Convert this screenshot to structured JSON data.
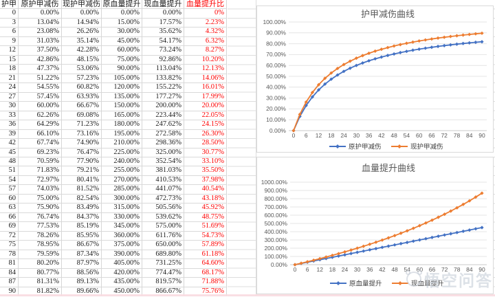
{
  "colors": {
    "accent_blue": "#4472C4",
    "accent_orange": "#ED7D31",
    "red_text": "#FE0000",
    "gridline": "#D9D9D9",
    "axis_text": "#595959"
  },
  "watermark": {
    "text": "悟空问答"
  },
  "table": {
    "headers": [
      "护甲",
      "原护甲减伤",
      "现护甲减伤",
      "原血量提升",
      "现血量提升",
      "血量提升比"
    ],
    "red_column_index": 5,
    "rows": [
      [
        "0",
        "0.00%",
        "0.00%",
        "0.00%",
        "0.00%",
        "0%"
      ],
      [
        "3",
        "13.04%",
        "14.94%",
        "15.00%",
        "17.57%",
        "2.23%"
      ],
      [
        "6",
        "23.08%",
        "26.26%",
        "30.00%",
        "35.62%",
        "4.32%"
      ],
      [
        "9",
        "31.03%",
        "35.14%",
        "45.00%",
        "54.17%",
        "6.32%"
      ],
      [
        "12",
        "37.50%",
        "42.28%",
        "60.00%",
        "73.24%",
        "8.27%"
      ],
      [
        "15",
        "42.86%",
        "48.15%",
        "75.00%",
        "92.86%",
        "10.20%"
      ],
      [
        "18",
        "47.37%",
        "53.06%",
        "90.00%",
        "113.04%",
        "12.13%"
      ],
      [
        "21",
        "51.22%",
        "57.23%",
        "105.00%",
        "133.82%",
        "14.06%"
      ],
      [
        "24",
        "54.55%",
        "60.82%",
        "120.00%",
        "155.22%",
        "16.01%"
      ],
      [
        "27",
        "57.45%",
        "63.93%",
        "135.00%",
        "177.27%",
        "17.99%"
      ],
      [
        "30",
        "60.00%",
        "66.67%",
        "150.00%",
        "200.00%",
        "20.00%"
      ],
      [
        "33",
        "62.26%",
        "69.08%",
        "165.00%",
        "223.44%",
        "22.05%"
      ],
      [
        "36",
        "64.29%",
        "71.23%",
        "180.00%",
        "247.62%",
        "24.15%"
      ],
      [
        "39",
        "66.10%",
        "73.16%",
        "195.00%",
        "272.58%",
        "26.30%"
      ],
      [
        "42",
        "67.74%",
        "74.90%",
        "210.00%",
        "298.36%",
        "28.50%"
      ],
      [
        "45",
        "69.23%",
        "76.47%",
        "225.00%",
        "325.00%",
        "30.77%"
      ],
      [
        "48",
        "70.59%",
        "77.90%",
        "240.00%",
        "352.54%",
        "33.10%"
      ],
      [
        "51",
        "71.83%",
        "79.21%",
        "255.00%",
        "381.03%",
        "35.50%"
      ],
      [
        "54",
        "72.97%",
        "80.41%",
        "270.00%",
        "410.53%",
        "37.98%"
      ],
      [
        "57",
        "74.03%",
        "81.52%",
        "285.00%",
        "441.07%",
        "40.54%"
      ],
      [
        "60",
        "75.00%",
        "82.54%",
        "300.00%",
        "472.73%",
        "43.18%"
      ],
      [
        "63",
        "75.90%",
        "83.49%",
        "315.00%",
        "505.56%",
        "45.92%"
      ],
      [
        "66",
        "76.74%",
        "84.37%",
        "330.00%",
        "539.62%",
        "48.75%"
      ],
      [
        "69",
        "77.53%",
        "85.19%",
        "345.00%",
        "575.00%",
        "51.69%"
      ],
      [
        "72",
        "78.26%",
        "85.95%",
        "360.00%",
        "611.76%",
        "54.73%"
      ],
      [
        "75",
        "78.95%",
        "86.67%",
        "375.00%",
        "650.00%",
        "57.89%"
      ],
      [
        "78",
        "79.59%",
        "87.34%",
        "390.00%",
        "689.80%",
        "61.18%"
      ],
      [
        "81",
        "80.20%",
        "87.97%",
        "405.00%",
        "731.25%",
        "64.60%"
      ],
      [
        "84",
        "80.77%",
        "88.56%",
        "420.00%",
        "774.47%",
        "68.17%"
      ],
      [
        "87",
        "81.31%",
        "89.13%",
        "435.00%",
        "819.57%",
        "71.88%"
      ],
      [
        "90",
        "81.82%",
        "89.66%",
        "450.00%",
        "866.67%",
        "75.76%"
      ]
    ]
  },
  "chart_data": [
    {
      "type": "line",
      "title": "护甲减伤曲线",
      "x": [
        0,
        3,
        6,
        9,
        12,
        15,
        18,
        21,
        24,
        27,
        30,
        33,
        36,
        39,
        42,
        45,
        48,
        51,
        54,
        57,
        60,
        63,
        66,
        69,
        72,
        75,
        78,
        81,
        84,
        87,
        90
      ],
      "x_tick_labels": [
        "0",
        "6",
        "12",
        "18",
        "24",
        "30",
        "36",
        "42",
        "48",
        "54",
        "60",
        "66",
        "72",
        "78",
        "84",
        "90"
      ],
      "ylim": [
        0,
        100
      ],
      "y_tick_labels": [
        "0.00%",
        "10.00%",
        "20.00%",
        "30.00%",
        "40.00%",
        "50.00%",
        "60.00%",
        "70.00%",
        "80.00%",
        "90.00%",
        "100.00%"
      ],
      "grid": true,
      "legend_position": "bottom",
      "series": [
        {
          "name": "原护甲减伤",
          "color": "#4472C4",
          "values": [
            0,
            13.04,
            23.08,
            31.03,
            37.5,
            42.86,
            47.37,
            51.22,
            54.55,
            57.45,
            60,
            62.26,
            64.29,
            66.1,
            67.74,
            69.23,
            70.59,
            71.83,
            72.97,
            74.03,
            75,
            75.9,
            76.74,
            77.53,
            78.26,
            78.95,
            79.59,
            80.2,
            80.77,
            81.31,
            81.82
          ]
        },
        {
          "name": "现护甲减伤",
          "color": "#ED7D31",
          "values": [
            0,
            14.94,
            26.26,
            35.14,
            42.28,
            48.15,
            53.06,
            57.23,
            60.82,
            63.93,
            66.67,
            69.08,
            71.23,
            73.16,
            74.9,
            76.47,
            77.9,
            79.21,
            80.41,
            81.52,
            82.54,
            83.49,
            84.37,
            85.19,
            85.95,
            86.67,
            87.34,
            87.97,
            88.56,
            89.13,
            89.66
          ]
        }
      ]
    },
    {
      "type": "line",
      "title": "血量提升曲线",
      "x": [
        0,
        3,
        6,
        9,
        12,
        15,
        18,
        21,
        24,
        27,
        30,
        33,
        36,
        39,
        42,
        45,
        48,
        51,
        54,
        57,
        60,
        63,
        66,
        69,
        72,
        75,
        78,
        81,
        84,
        87,
        90
      ],
      "x_tick_labels": [
        "0",
        "6",
        "12",
        "18",
        "24",
        "30",
        "36",
        "42",
        "48",
        "54",
        "60",
        "66",
        "72",
        "78",
        "84",
        "90"
      ],
      "ylim": [
        0,
        1000
      ],
      "y_tick_labels": [
        "0.00%",
        "100.00%",
        "200.00%",
        "300.00%",
        "400.00%",
        "500.00%",
        "600.00%",
        "700.00%",
        "800.00%",
        "900.00%",
        "1000.00%"
      ],
      "grid": true,
      "legend_position": "bottom",
      "series": [
        {
          "name": "原血量提升",
          "color": "#4472C4",
          "values": [
            0,
            15,
            30,
            45,
            60,
            75,
            90,
            105,
            120,
            135,
            150,
            165,
            180,
            195,
            210,
            225,
            240,
            255,
            270,
            285,
            300,
            315,
            330,
            345,
            360,
            375,
            390,
            405,
            420,
            435,
            450
          ]
        },
        {
          "name": "现血量提升",
          "color": "#ED7D31",
          "values": [
            0,
            17.57,
            35.62,
            54.17,
            73.24,
            92.86,
            113.04,
            133.82,
            155.22,
            177.27,
            200,
            223.44,
            247.62,
            272.58,
            298.36,
            325,
            352.54,
            381.03,
            410.53,
            441.07,
            472.73,
            505.56,
            539.62,
            575,
            611.76,
            650,
            689.8,
            731.25,
            774.47,
            819.57,
            866.67
          ]
        }
      ]
    }
  ]
}
